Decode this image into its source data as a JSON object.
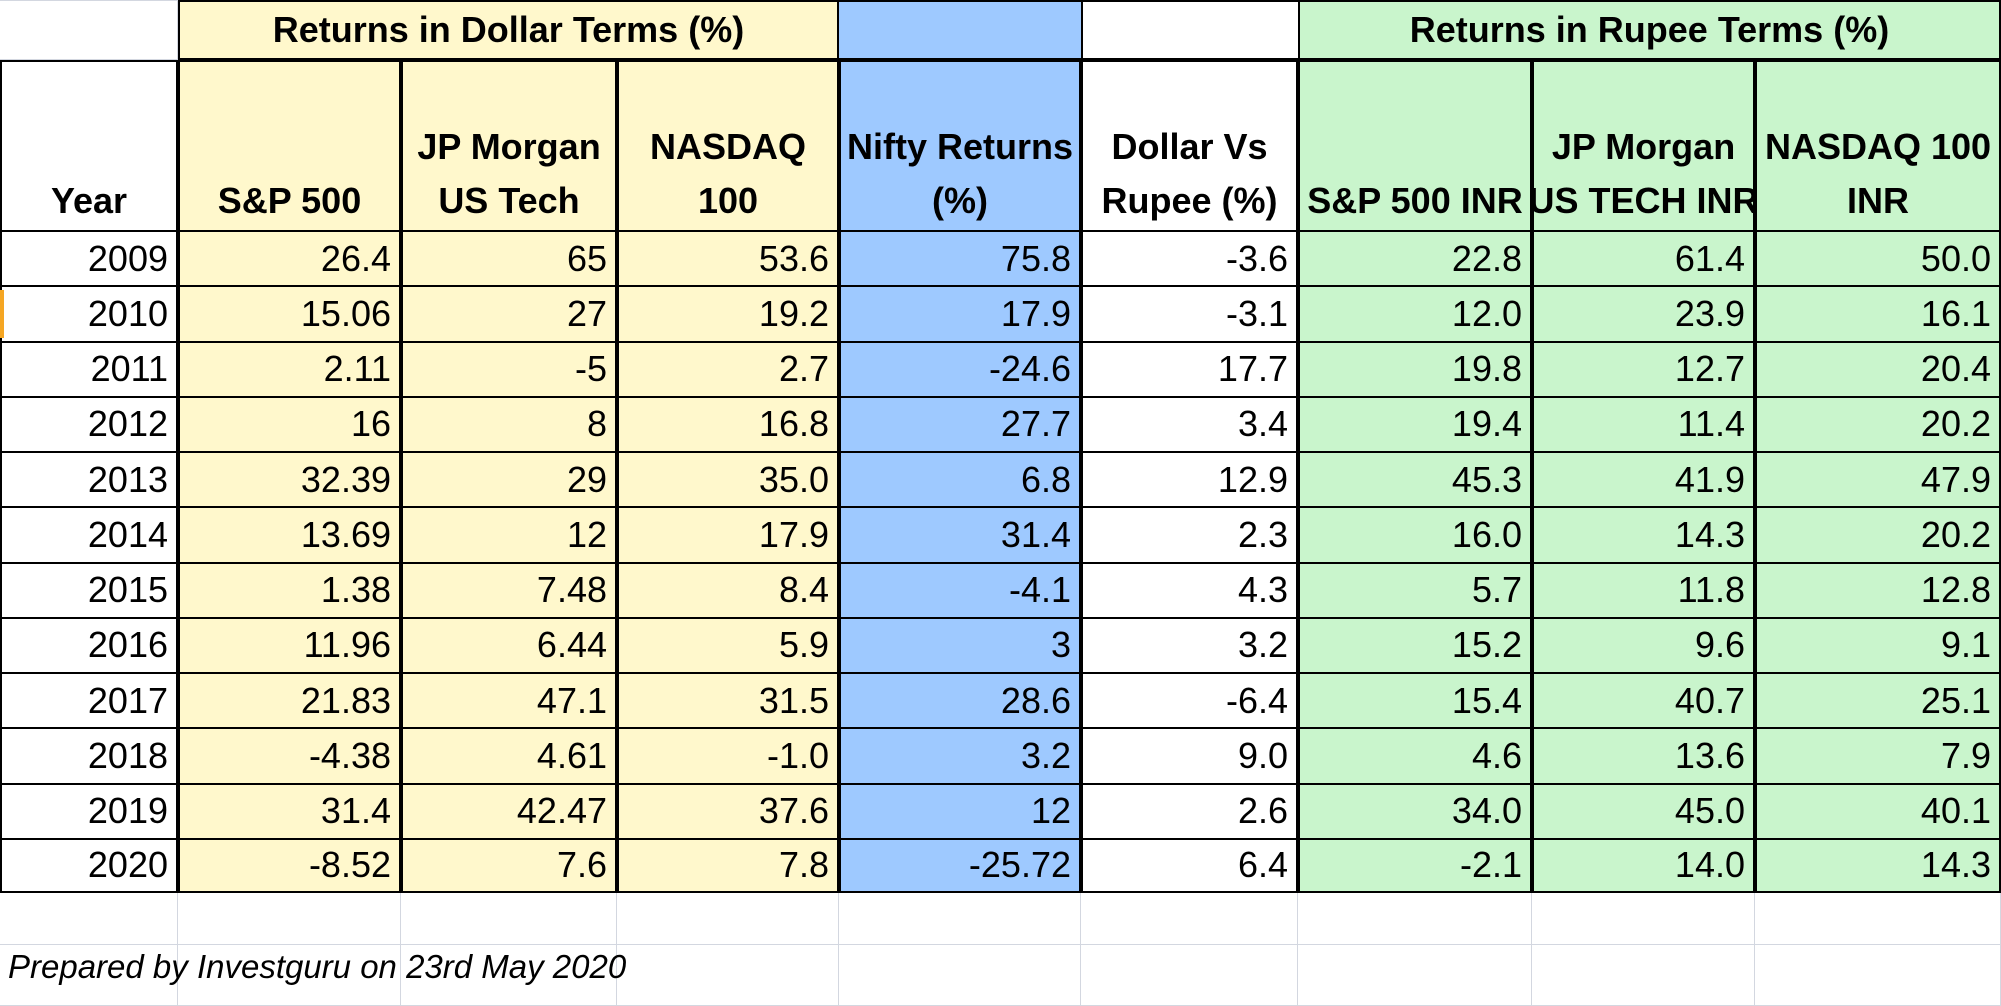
{
  "group_headers": {
    "dollar": "Returns in Dollar Terms (%)",
    "rupee": "Returns in Rupee Terms (%)"
  },
  "columns": [
    [
      "Year"
    ],
    [
      "S&P 500"
    ],
    [
      "JP Morgan",
      "US Tech"
    ],
    [
      "NASDAQ",
      "100"
    ],
    [
      "Nifty Returns",
      "(%)"
    ],
    [
      "Dollar Vs",
      "Rupee (%)"
    ],
    [
      "S&P 500 INR"
    ],
    [
      "JP Morgan",
      "US TECH INR"
    ],
    [
      "NASDAQ 100",
      "INR"
    ]
  ],
  "rows": [
    [
      "2009",
      "26.4",
      "65",
      "53.6",
      "75.8",
      "-3.6",
      "22.8",
      "61.4",
      "50.0"
    ],
    [
      "2010",
      "15.06",
      "27",
      "19.2",
      "17.9",
      "-3.1",
      "12.0",
      "23.9",
      "16.1"
    ],
    [
      "2011",
      "2.11",
      "-5",
      "2.7",
      "-24.6",
      "17.7",
      "19.8",
      "12.7",
      "20.4"
    ],
    [
      "2012",
      "16",
      "8",
      "16.8",
      "27.7",
      "3.4",
      "19.4",
      "11.4",
      "20.2"
    ],
    [
      "2013",
      "32.39",
      "29",
      "35.0",
      "6.8",
      "12.9",
      "45.3",
      "41.9",
      "47.9"
    ],
    [
      "2014",
      "13.69",
      "12",
      "17.9",
      "31.4",
      "2.3",
      "16.0",
      "14.3",
      "20.2"
    ],
    [
      "2015",
      "1.38",
      "7.48",
      "8.4",
      "-4.1",
      "4.3",
      "5.7",
      "11.8",
      "12.8"
    ],
    [
      "2016",
      "11.96",
      "6.44",
      "5.9",
      "3",
      "3.2",
      "15.2",
      "9.6",
      "9.1"
    ],
    [
      "2017",
      "21.83",
      "47.1",
      "31.5",
      "28.6",
      "-6.4",
      "15.4",
      "40.7",
      "25.1"
    ],
    [
      "2018",
      "-4.38",
      "4.61",
      "-1.0",
      "3.2",
      "9.0",
      "4.6",
      "13.6",
      "7.9"
    ],
    [
      "2019",
      "31.4",
      "42.47",
      "37.6",
      "12",
      "2.6",
      "34.0",
      "45.0",
      "40.1"
    ],
    [
      "2020",
      "-8.52",
      "7.6",
      "7.8",
      "-25.72",
      "6.4",
      "-2.1",
      "14.0",
      "14.3"
    ]
  ],
  "footer": "Prepared by Investguru on 23rd May 2020",
  "colors": {
    "dollar_fill": "#fff8cc",
    "nifty_fill": "#9ec9ff",
    "rupee_fill": "#c9f5cc",
    "gridline": "#d3d7e0"
  }
}
